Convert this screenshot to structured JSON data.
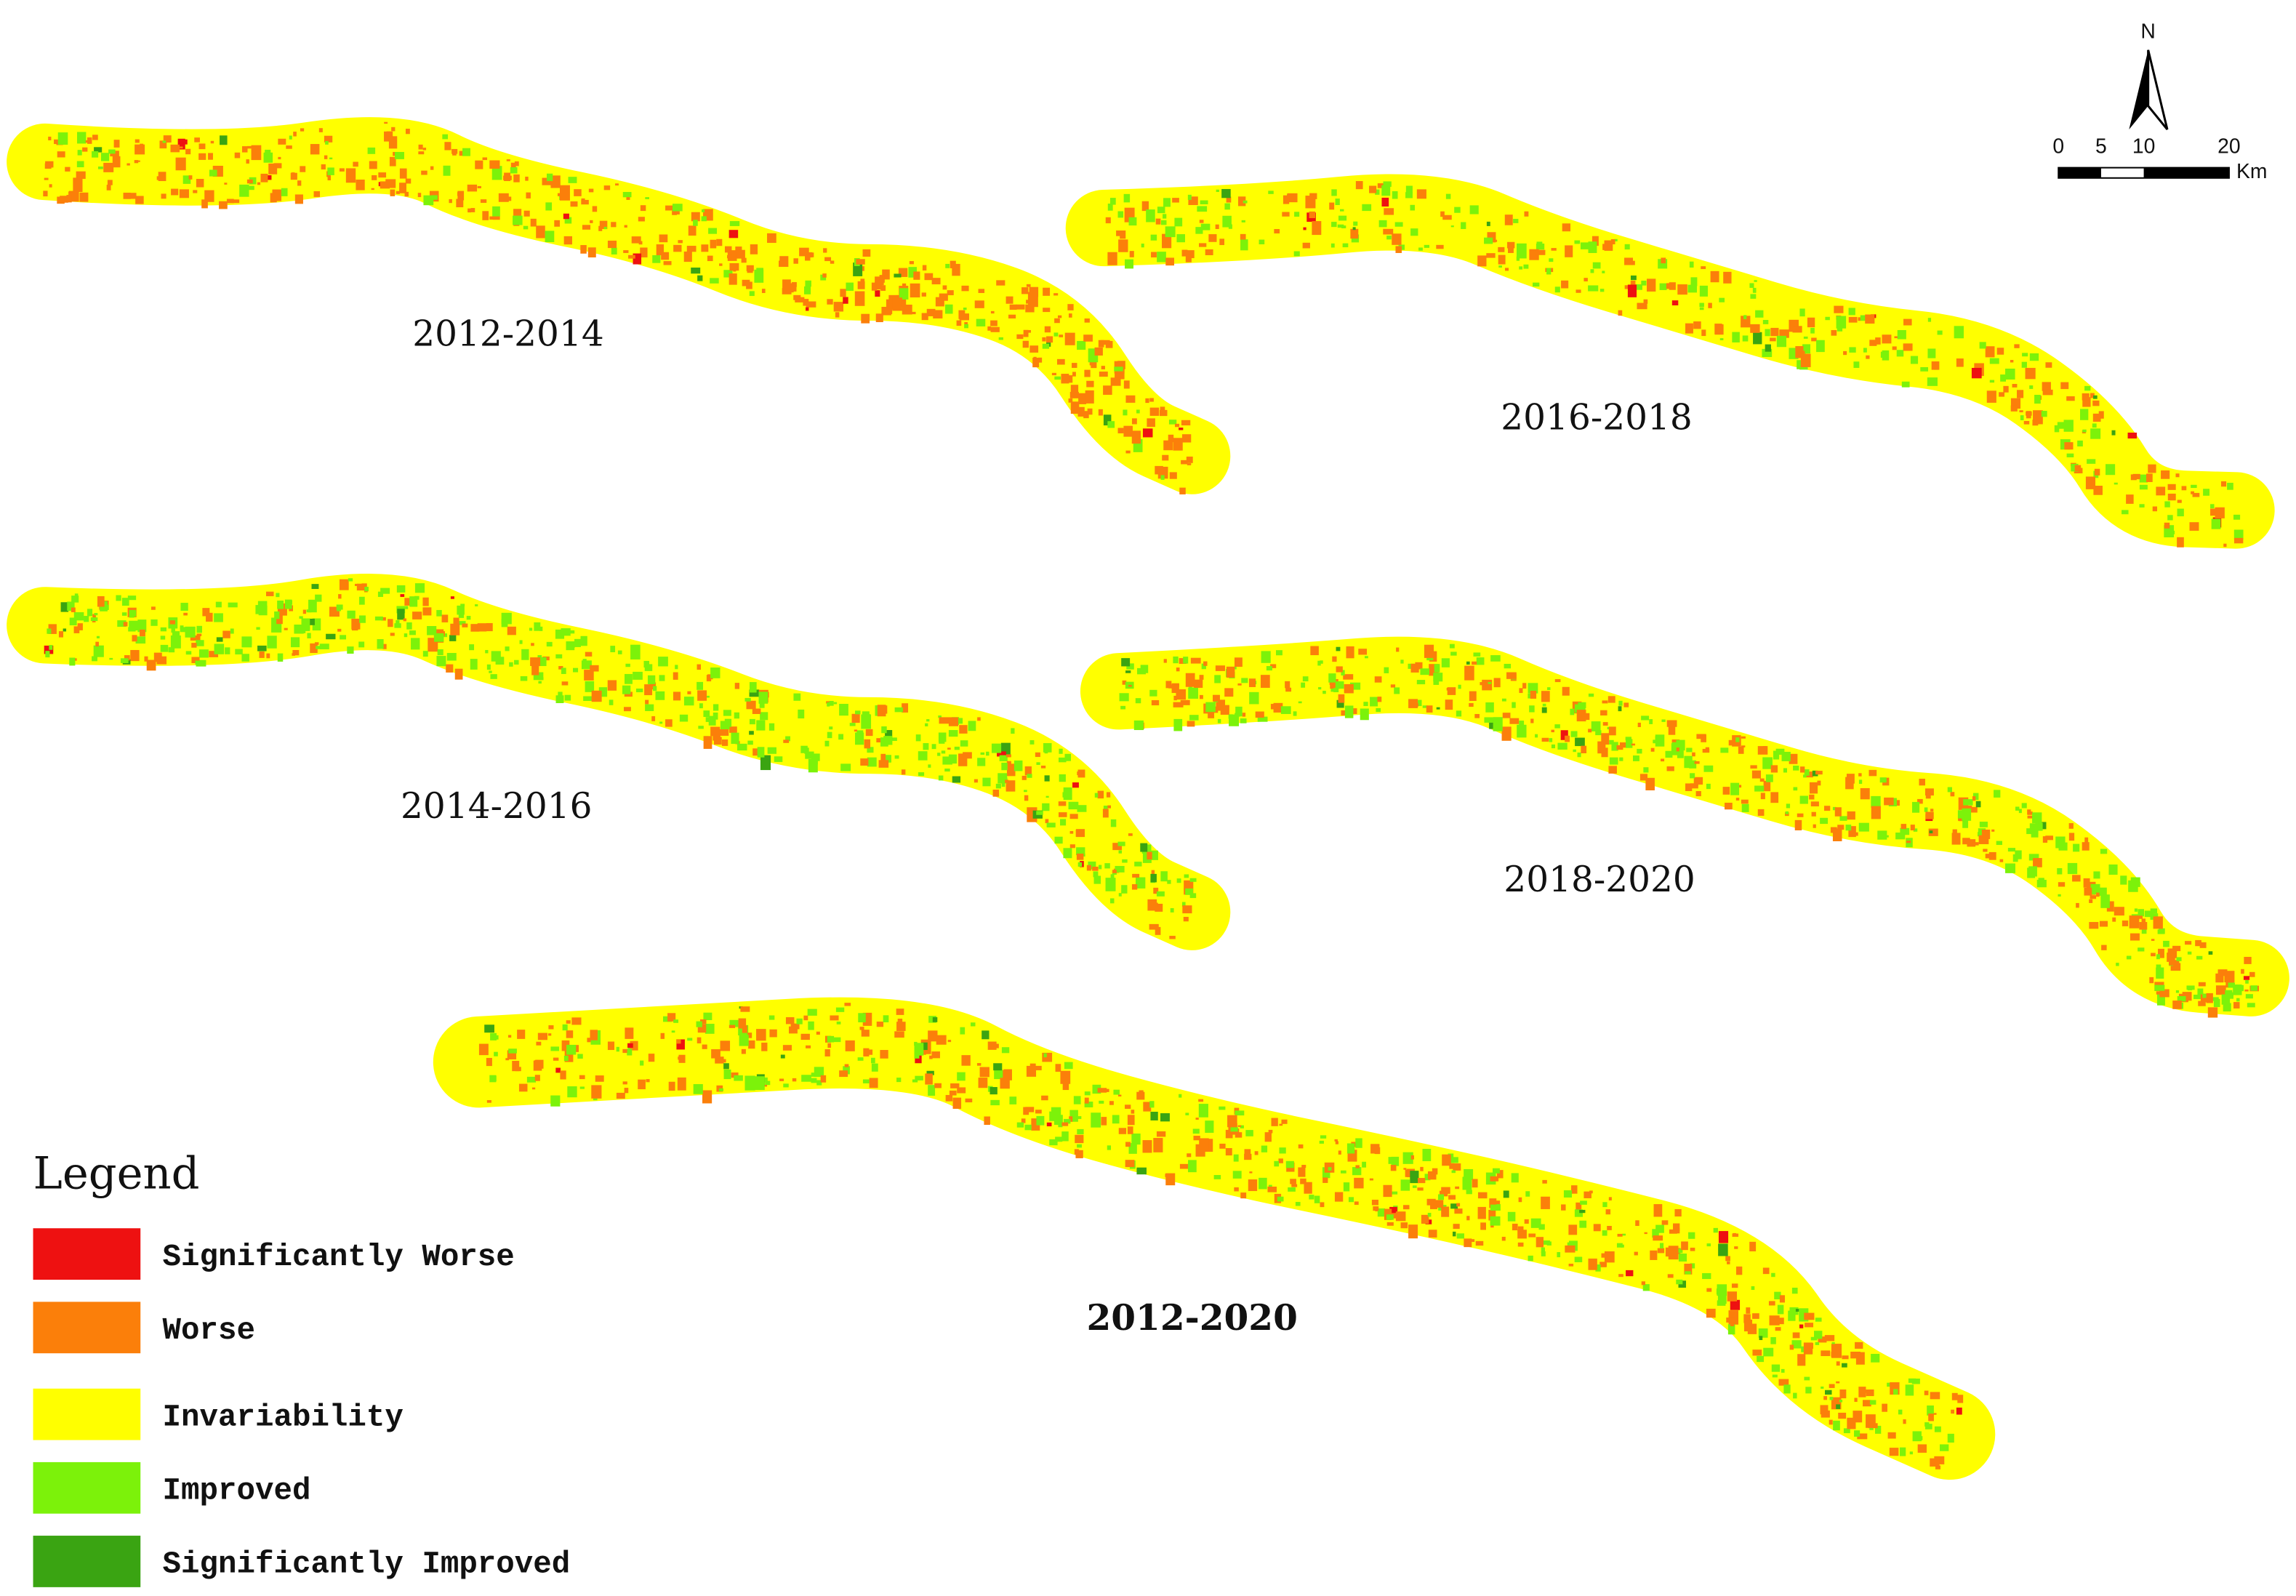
{
  "panels": [
    {
      "label": "2012-2014"
    },
    {
      "label": "2016-2018"
    },
    {
      "label": "2014-2016"
    },
    {
      "label": "2018-2020"
    },
    {
      "label": "2012-2020"
    }
  ],
  "legend": {
    "title": "Legend",
    "items": [
      {
        "label": "Significantly Worse",
        "color": "#ee1111"
      },
      {
        "label": "Worse",
        "color": "#fb7f0a"
      },
      {
        "label": "Invariability",
        "color": "#ffff00"
      },
      {
        "label": "Improved",
        "color": "#7cf20a"
      },
      {
        "label": "Significantly Improved",
        "color": "#3aa412"
      }
    ]
  },
  "north_arrow": {
    "label": "N"
  },
  "scale_bar": {
    "labels": [
      "0",
      "5",
      "10",
      "20"
    ],
    "unit": "Km"
  }
}
